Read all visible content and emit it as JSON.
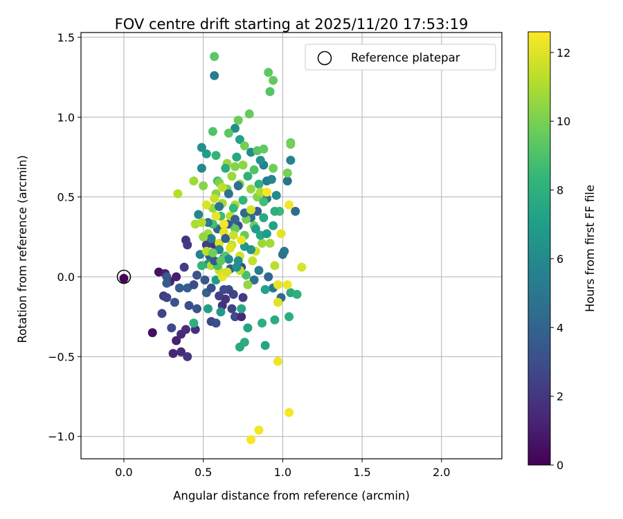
{
  "chart_data": {
    "type": "scatter",
    "title": "FOV centre drift starting at 2025/11/20 17:53:19",
    "xlabel": "Angular distance from reference (arcmin)",
    "ylabel": "Rotation from reference (arcmin)",
    "xlim": [
      -0.27,
      2.38
    ],
    "ylim": [
      -1.14,
      1.53
    ],
    "xticks": [
      0.0,
      0.5,
      1.0,
      1.5,
      2.0
    ],
    "xtick_labels": [
      "0.0",
      "0.5",
      "1.0",
      "1.5",
      "2.0"
    ],
    "yticks": [
      1.5,
      1.0,
      0.5,
      0.0,
      -0.5,
      -1.0
    ],
    "ytick_labels": [
      "1.5",
      "1.0",
      "0.5",
      "0.0",
      "−0.5",
      "−1.0"
    ],
    "grid": true,
    "legend": {
      "position": "top-right",
      "label": "Reference platepar"
    },
    "reference_point": {
      "x": 0.0,
      "y": 0.0
    },
    "colorbar": {
      "label": "Hours from first FF file",
      "colormap": "viridis",
      "range": [
        0,
        12.6
      ],
      "ticks": [
        0,
        2,
        4,
        6,
        8,
        10,
        12
      ],
      "tick_labels": [
        "0",
        "2",
        "4",
        "6",
        "8",
        "10",
        "12"
      ],
      "colors": [
        "#440154",
        "#482878",
        "#3e4a89",
        "#31688e",
        "#26828e",
        "#1f9e89",
        "#35b779",
        "#6ece58",
        "#b5de2b",
        "#fde725"
      ]
    },
    "points": [
      [
        0.0,
        -0.01,
        0.1
      ],
      [
        0.22,
        0.03,
        0.6
      ],
      [
        0.26,
        0.02,
        1.1
      ],
      [
        0.29,
        -0.03,
        1.2
      ],
      [
        0.33,
        0.0,
        1.0
      ],
      [
        0.18,
        -0.35,
        0.5
      ],
      [
        0.33,
        -0.4,
        1.1
      ],
      [
        0.36,
        -0.36,
        1.5
      ],
      [
        0.31,
        -0.48,
        1.3
      ],
      [
        0.36,
        -0.47,
        1.5
      ],
      [
        0.4,
        -0.5,
        2.0
      ],
      [
        0.39,
        0.23,
        1.9
      ],
      [
        0.4,
        0.2,
        2.1
      ],
      [
        0.38,
        0.06,
        2.3
      ],
      [
        0.25,
        -0.12,
        2.2
      ],
      [
        0.27,
        -0.13,
        2.5
      ],
      [
        0.24,
        -0.23,
        2.6
      ],
      [
        0.3,
        -0.32,
        2.8
      ],
      [
        0.39,
        -0.33,
        1.6
      ],
      [
        0.32,
        -0.16,
        3.3
      ],
      [
        0.27,
        0.0,
        3.4
      ],
      [
        0.27,
        -0.04,
        3.6
      ],
      [
        0.35,
        -0.07,
        3.7
      ],
      [
        0.4,
        -0.07,
        3.8
      ],
      [
        0.44,
        -0.05,
        2.9
      ],
      [
        0.41,
        -0.18,
        3.0
      ],
      [
        0.46,
        -0.2,
        3.2
      ],
      [
        0.45,
        -0.33,
        1.7
      ],
      [
        0.52,
        -0.1,
        4.0
      ],
      [
        0.55,
        -0.28,
        2.6
      ],
      [
        0.58,
        -0.29,
        3.1
      ],
      [
        0.6,
        -0.12,
        2.4
      ],
      [
        0.62,
        -0.18,
        1.8
      ],
      [
        0.64,
        -0.14,
        1.9
      ],
      [
        0.66,
        -0.08,
        2.7
      ],
      [
        0.68,
        -0.2,
        2.5
      ],
      [
        0.7,
        -0.25,
        2.9
      ],
      [
        0.75,
        -0.13,
        2.2
      ],
      [
        0.74,
        -0.25,
        1.4
      ],
      [
        0.74,
        0.06,
        3.0
      ],
      [
        0.67,
        0.05,
        3.5
      ],
      [
        0.54,
        0.13,
        3.7
      ],
      [
        0.57,
        0.2,
        2.0
      ],
      [
        0.52,
        0.2,
        2.3
      ],
      [
        0.63,
        0.12,
        3.9
      ],
      [
        0.59,
        0.3,
        4.2
      ],
      [
        0.66,
        0.33,
        3.4
      ],
      [
        0.72,
        0.32,
        3.1
      ],
      [
        0.8,
        0.37,
        4.6
      ],
      [
        0.84,
        0.41,
        3.8
      ],
      [
        0.9,
        0.6,
        5.3
      ],
      [
        0.88,
        0.7,
        5.5
      ],
      [
        0.93,
        0.61,
        5.7
      ],
      [
        0.9,
        0.49,
        5.1
      ],
      [
        0.96,
        0.51,
        5.9
      ],
      [
        1.03,
        0.6,
        4.7
      ],
      [
        1.05,
        0.73,
        5.6
      ],
      [
        1.08,
        0.41,
        4.4
      ],
      [
        1.01,
        0.16,
        5.1
      ],
      [
        1.0,
        0.14,
        4.8
      ],
      [
        0.99,
        -0.13,
        4.3
      ],
      [
        0.94,
        -0.07,
        5.0
      ],
      [
        0.91,
        0.0,
        4.1
      ],
      [
        0.85,
        0.04,
        5.2
      ],
      [
        0.82,
        -0.02,
        4.5
      ],
      [
        0.57,
        1.26,
        5.4
      ],
      [
        0.7,
        0.93,
        6.1
      ],
      [
        0.8,
        0.78,
        6.0
      ],
      [
        0.86,
        0.73,
        6.3
      ],
      [
        0.49,
        0.81,
        6.2
      ],
      [
        0.49,
        0.68,
        5.9
      ],
      [
        0.47,
        0.39,
        5.8
      ],
      [
        0.48,
        0.14,
        5.6
      ],
      [
        0.53,
        0.08,
        6.6
      ],
      [
        0.58,
        -0.02,
        6.9
      ],
      [
        0.61,
        -0.22,
        6.7
      ],
      [
        0.53,
        -0.2,
        7.1
      ],
      [
        0.74,
        -0.2,
        7.5
      ],
      [
        0.78,
        -0.32,
        7.3
      ],
      [
        0.76,
        -0.41,
        7.8
      ],
      [
        0.73,
        -0.44,
        7.6
      ],
      [
        0.89,
        -0.43,
        7.4
      ],
      [
        0.87,
        -0.29,
        7.9
      ],
      [
        0.95,
        -0.27,
        7.7
      ],
      [
        0.89,
        -0.08,
        7.2
      ],
      [
        1.05,
        -0.1,
        7.6
      ],
      [
        1.09,
        -0.11,
        7.9
      ],
      [
        1.04,
        -0.25,
        7.8
      ],
      [
        0.44,
        -0.29,
        8.0
      ],
      [
        0.49,
        0.07,
        8.3
      ],
      [
        0.77,
        0.01,
        8.9
      ],
      [
        0.98,
        0.41,
        8.5
      ],
      [
        0.95,
        0.41,
        7.9
      ],
      [
        0.52,
        0.77,
        7.0
      ],
      [
        0.56,
        0.91,
        9.1
      ],
      [
        0.59,
        0.6,
        8.7
      ],
      [
        0.73,
        0.86,
        7.2
      ],
      [
        0.57,
        1.38,
        9.3
      ],
      [
        0.91,
        1.28,
        9.4
      ],
      [
        0.94,
        1.23,
        9.5
      ],
      [
        0.92,
        1.16,
        9.2
      ],
      [
        0.79,
        1.02,
        9.6
      ],
      [
        0.72,
        0.98,
        9.7
      ],
      [
        0.66,
        0.9,
        9.4
      ],
      [
        0.84,
        0.79,
        9.3
      ],
      [
        0.88,
        0.8,
        9.5
      ],
      [
        1.05,
        0.84,
        9.6
      ],
      [
        1.05,
        0.83,
        9.9
      ],
      [
        0.94,
        0.68,
        9.8
      ],
      [
        1.03,
        0.65,
        10.0
      ],
      [
        0.75,
        0.7,
        10.4
      ],
      [
        0.7,
        0.69,
        10.2
      ],
      [
        0.65,
        0.71,
        10.6
      ],
      [
        0.6,
        0.59,
        10.1
      ],
      [
        0.5,
        0.57,
        10.3
      ],
      [
        0.44,
        0.6,
        10.8
      ],
      [
        0.34,
        0.52,
        11.2
      ],
      [
        0.45,
        0.33,
        11.0
      ],
      [
        0.53,
        0.27,
        10.9
      ],
      [
        0.52,
        0.16,
        11.3
      ],
      [
        0.55,
        0.07,
        11.1
      ],
      [
        0.6,
        0.04,
        11.6
      ],
      [
        0.62,
        0.0,
        12.2
      ],
      [
        0.65,
        0.03,
        11.8
      ],
      [
        0.73,
        0.04,
        11.4
      ],
      [
        0.81,
        0.1,
        11.5
      ],
      [
        0.78,
        -0.05,
        10.5
      ],
      [
        0.83,
        0.16,
        11.7
      ],
      [
        0.87,
        0.21,
        10.7
      ],
      [
        0.92,
        0.21,
        10.8
      ],
      [
        0.95,
        0.07,
        11.3
      ],
      [
        0.97,
        -0.16,
        12.0
      ],
      [
        0.97,
        -0.05,
        12.2
      ],
      [
        0.99,
        0.27,
        12.1
      ],
      [
        1.03,
        -0.05,
        12.3
      ],
      [
        1.12,
        0.06,
        11.9
      ],
      [
        1.04,
        0.45,
        12.4
      ],
      [
        0.97,
        -0.53,
        12.3
      ],
      [
        1.04,
        -0.85,
        12.5
      ],
      [
        0.85,
        -0.96,
        12.4
      ],
      [
        0.8,
        -1.02,
        12.5
      ],
      [
        0.6,
        0.21,
        11.9
      ],
      [
        0.63,
        0.28,
        12.1
      ],
      [
        0.68,
        0.2,
        11.5
      ],
      [
        0.73,
        0.13,
        11.7
      ],
      [
        0.67,
        0.38,
        11.3
      ],
      [
        0.7,
        0.45,
        11.0
      ],
      [
        0.62,
        0.46,
        10.9
      ],
      [
        0.56,
        0.43,
        10.6
      ],
      [
        0.58,
        0.52,
        10.3
      ],
      [
        0.65,
        0.55,
        10.1
      ],
      [
        0.73,
        0.58,
        10.4
      ],
      [
        0.8,
        0.55,
        10.6
      ],
      [
        0.84,
        0.5,
        10.2
      ],
      [
        0.77,
        0.36,
        10.0
      ],
      [
        0.82,
        0.32,
        9.8
      ],
      [
        0.76,
        0.26,
        9.6
      ],
      [
        0.7,
        0.3,
        9.5
      ],
      [
        0.64,
        0.13,
        9.2
      ],
      [
        0.59,
        0.07,
        9.0
      ],
      [
        0.56,
        0.33,
        8.8
      ],
      [
        0.61,
        0.38,
        8.6
      ],
      [
        0.69,
        0.43,
        8.4
      ],
      [
        0.75,
        0.48,
        8.3
      ],
      [
        0.78,
        0.63,
        8.1
      ],
      [
        0.71,
        0.75,
        7.5
      ],
      [
        0.64,
        0.68,
        7.8
      ],
      [
        0.58,
        0.76,
        8.2
      ],
      [
        0.85,
        0.58,
        8.0
      ],
      [
        0.88,
        0.37,
        7.6
      ],
      [
        0.86,
        0.26,
        7.4
      ],
      [
        0.83,
        0.3,
        7.0
      ],
      [
        0.76,
        0.19,
        6.8
      ],
      [
        0.71,
        0.06,
        6.4
      ],
      [
        0.66,
        0.11,
        6.0
      ],
      [
        0.6,
        0.17,
        5.7
      ],
      [
        0.55,
        0.24,
        5.4
      ],
      [
        0.53,
        0.34,
        5.2
      ],
      [
        0.6,
        0.44,
        5.0
      ],
      [
        0.66,
        0.52,
        4.8
      ],
      [
        0.72,
        0.57,
        4.6
      ],
      [
        0.76,
        0.4,
        4.3
      ],
      [
        0.7,
        0.36,
        4.0
      ],
      [
        0.64,
        0.24,
        3.8
      ],
      [
        0.57,
        0.1,
        3.6
      ],
      [
        0.51,
        -0.02,
        3.4
      ],
      [
        0.46,
        0.01,
        3.2
      ],
      [
        0.55,
        -0.07,
        3.1
      ],
      [
        0.63,
        -0.08,
        2.8
      ],
      [
        0.69,
        -0.11,
        2.6
      ],
      [
        0.72,
        0.1,
        6.2
      ],
      [
        0.8,
        0.17,
        6.5
      ],
      [
        0.9,
        0.27,
        6.9
      ],
      [
        0.94,
        0.32,
        7.2
      ],
      [
        0.88,
        0.47,
        8.7
      ],
      [
        0.82,
        0.67,
        9.1
      ],
      [
        0.76,
        0.82,
        9.9
      ],
      [
        0.68,
        0.63,
        10.7
      ],
      [
        0.62,
        0.56,
        11.4
      ],
      [
        0.57,
        0.49,
        11.6
      ],
      [
        0.52,
        0.45,
        11.9
      ],
      [
        0.49,
        0.34,
        11.2
      ],
      [
        0.5,
        0.25,
        10.5
      ],
      [
        0.56,
        0.15,
        9.8
      ],
      [
        0.61,
        0.1,
        9.4
      ],
      [
        0.67,
        0.18,
        12.0
      ],
      [
        0.74,
        0.23,
        12.3
      ],
      [
        0.8,
        0.42,
        11.8
      ],
      [
        0.86,
        0.53,
        11.0
      ],
      [
        0.9,
        0.53,
        12.5
      ],
      [
        0.58,
        0.38,
        12.2
      ],
      [
        0.63,
        0.33,
        12.4
      ],
      [
        0.69,
        0.26,
        11.6
      ]
    ]
  }
}
